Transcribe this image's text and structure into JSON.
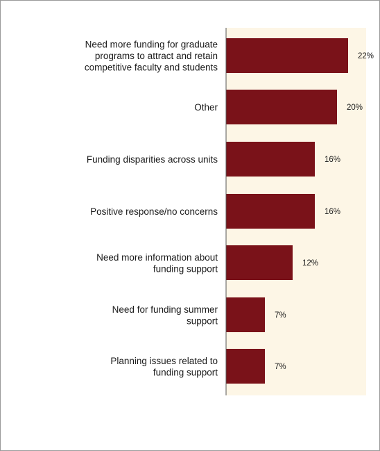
{
  "chart_data": {
    "type": "bar",
    "orientation": "horizontal",
    "categories": [
      [
        "Need more funding for graduate",
        "programs to attract and retain",
        "competitive faculty and students"
      ],
      [
        "Other"
      ],
      [
        "Funding disparities across units"
      ],
      [
        "Positive response/no concerns"
      ],
      [
        "Need more information about",
        "funding support"
      ],
      [
        "Need for funding summer",
        "support"
      ],
      [
        "Planning issues related to",
        "funding support"
      ]
    ],
    "values": [
      22,
      20,
      16,
      16,
      12,
      7,
      7
    ],
    "value_labels": [
      "22%",
      "20%",
      "16%",
      "16%",
      "12%",
      "7%",
      "7%"
    ],
    "xlim": [
      0,
      25
    ],
    "grid": false,
    "legend": "none",
    "colors": {
      "bar": "#7a1219",
      "plot_background": "#fdf6e6",
      "axis": "#555555"
    }
  }
}
